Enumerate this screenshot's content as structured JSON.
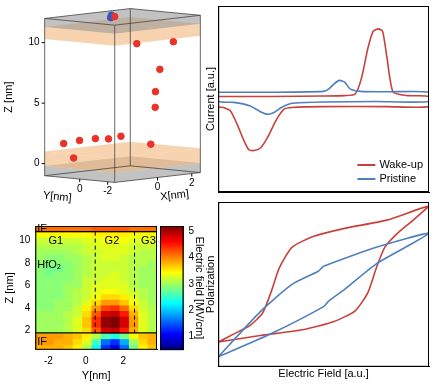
{
  "chart_data": [
    {
      "type": "scatter3d",
      "x_label": "X[nm]",
      "y_label": "Y[nm]",
      "z_label": "Z [nm]",
      "xlim": [
        -2.5,
        2.5
      ],
      "ylim": [
        -2.5,
        2.5
      ],
      "zlim": [
        -1,
        12
      ],
      "xticks": [
        0,
        2
      ],
      "yticks": [
        -2,
        0
      ],
      "zticks": [
        0,
        5,
        10
      ],
      "layers": [
        {
          "z": [
            -1,
            -0.2
          ],
          "color": "#9a9a9a"
        },
        {
          "z": [
            -0.2,
            1
          ],
          "color": "#f4b67a"
        },
        {
          "z": [
            10.3,
            11.3
          ],
          "color": "#f4b67a"
        },
        {
          "z": [
            11.3,
            12
          ],
          "color": "#9a9a9a"
        }
      ],
      "series": [
        {
          "color": "#e8322a",
          "x": [
            -1.8,
            -1.2,
            -0.6,
            0.0,
            0.4,
            -2.2,
            1.0,
            0.6,
            1.6,
            1.2,
            1.0,
            1.5,
            0.2
          ],
          "y": [
            2.0,
            1.6,
            1.2,
            1.0,
            0.6,
            0.8,
            -0.8,
            -1.6,
            -0.4,
            -1.2,
            0.2,
            -1.8,
            0.8
          ],
          "z": [
            1.6,
            1.8,
            1.9,
            1.8,
            2.0,
            0.6,
            1.4,
            4.6,
            5.6,
            7.6,
            9.6,
            9.9,
            11.9
          ]
        },
        {
          "color": "#3355cc",
          "x": [
            -0.2,
            0.5
          ],
          "y": [
            0.6,
            1.4
          ],
          "z": [
            11.9,
            11.9
          ]
        }
      ]
    },
    {
      "type": "heatmap",
      "x_label": "Y[nm]",
      "y_label": "Z [nm]",
      "xlim": [
        -2.7,
        3.8
      ],
      "ylim": [
        0.3,
        11.3
      ],
      "xticks": [
        -2,
        0,
        2
      ],
      "yticks": [
        2,
        4,
        6,
        8,
        10
      ],
      "x_edges": [
        -2.7,
        -2.2,
        -1.7,
        -1.2,
        -0.7,
        -0.2,
        0.3,
        0.8,
        1.3,
        1.8,
        2.3,
        2.8,
        3.3,
        3.8
      ],
      "y_edges": [
        0.3,
        0.8,
        1.3,
        1.8,
        2.3,
        2.8,
        3.3,
        3.8,
        4.3,
        4.8,
        5.3,
        5.8,
        6.3,
        6.8,
        7.3,
        7.8,
        8.3,
        8.8,
        9.3,
        9.8,
        10.3,
        10.8,
        11.3
      ],
      "cells": [
        [
          3.8,
          3.8,
          3.8,
          3.7,
          3.5,
          3.1,
          2.3,
          1.3,
          1.0,
          1.6,
          2.8,
          3.5,
          3.7
        ],
        [
          3.9,
          3.9,
          3.8,
          3.8,
          3.6,
          3.3,
          2.6,
          1.6,
          1.3,
          1.9,
          3.0,
          3.6,
          3.8
        ],
        [
          3.9,
          3.9,
          3.9,
          3.8,
          3.7,
          3.5,
          3.1,
          2.6,
          2.4,
          2.8,
          3.4,
          3.7,
          3.8
        ],
        [
          3.0,
          3.0,
          3.0,
          3.1,
          3.3,
          3.6,
          4.2,
          4.8,
          4.9,
          4.5,
          3.8,
          3.3,
          3.1
        ],
        [
          3.0,
          3.0,
          3.0,
          3.1,
          3.3,
          3.7,
          4.4,
          5.1,
          5.2,
          4.8,
          3.9,
          3.3,
          3.1
        ],
        [
          3.0,
          3.0,
          3.0,
          3.1,
          3.3,
          3.7,
          4.4,
          5.1,
          5.2,
          4.8,
          3.9,
          3.3,
          3.1
        ],
        [
          3.0,
          3.0,
          3.0,
          3.1,
          3.2,
          3.6,
          4.2,
          4.8,
          4.9,
          4.5,
          3.8,
          3.3,
          3.1
        ],
        [
          2.9,
          2.9,
          3.0,
          3.0,
          3.2,
          3.5,
          3.9,
          4.3,
          4.4,
          4.1,
          3.6,
          3.2,
          3.1
        ],
        [
          2.9,
          2.9,
          3.0,
          3.0,
          3.1,
          3.3,
          3.6,
          3.9,
          3.9,
          3.7,
          3.4,
          3.2,
          3.0
        ],
        [
          2.9,
          2.9,
          2.9,
          3.0,
          3.1,
          3.2,
          3.4,
          3.6,
          3.6,
          3.5,
          3.3,
          3.1,
          3.0
        ],
        [
          2.9,
          2.9,
          2.9,
          3.0,
          3.1,
          3.2,
          3.3,
          3.4,
          3.4,
          3.3,
          3.2,
          3.1,
          3.0
        ],
        [
          2.9,
          2.9,
          2.9,
          3.0,
          3.0,
          3.2,
          3.3,
          3.3,
          3.3,
          3.3,
          3.1,
          3.0,
          3.0
        ],
        [
          2.9,
          2.9,
          2.9,
          2.9,
          3.0,
          3.2,
          3.2,
          3.3,
          3.3,
          3.2,
          3.1,
          3.0,
          3.0
        ],
        [
          2.9,
          2.8,
          2.9,
          2.9,
          3.0,
          3.1,
          3.2,
          3.2,
          3.3,
          3.2,
          3.1,
          3.0,
          3.0
        ],
        [
          2.9,
          2.8,
          2.8,
          2.9,
          3.0,
          3.1,
          3.2,
          3.2,
          3.2,
          3.2,
          3.1,
          3.0,
          3.0
        ],
        [
          2.9,
          2.9,
          2.9,
          2.9,
          3.0,
          3.1,
          3.2,
          3.2,
          3.2,
          3.2,
          3.1,
          3.1,
          3.0
        ],
        [
          3.0,
          2.9,
          2.9,
          3.0,
          3.0,
          3.1,
          3.2,
          3.3,
          3.3,
          3.2,
          3.1,
          3.1,
          3.1
        ],
        [
          3.0,
          3.0,
          3.0,
          3.0,
          3.1,
          3.2,
          3.2,
          3.3,
          3.3,
          3.3,
          3.2,
          3.1,
          3.1
        ],
        [
          3.1,
          3.1,
          3.1,
          3.1,
          3.1,
          3.2,
          3.3,
          3.3,
          3.3,
          3.3,
          3.2,
          3.2,
          3.2
        ],
        [
          3.2,
          3.2,
          3.2,
          3.2,
          3.2,
          3.3,
          3.3,
          3.4,
          3.4,
          3.4,
          3.3,
          3.3,
          3.3
        ],
        [
          3.4,
          3.4,
          3.4,
          3.4,
          3.4,
          3.4,
          3.5,
          3.5,
          3.5,
          3.5,
          3.4,
          3.4,
          3.4
        ],
        [
          4.1,
          4.1,
          4.1,
          4.1,
          4.1,
          4.1,
          4.2,
          4.2,
          4.2,
          4.2,
          4.1,
          4.1,
          4.1
        ]
      ],
      "colorbar": {
        "label": "Electric field [MV/cm]",
        "lim": [
          0.5,
          5.2
        ],
        "ticks": [
          1,
          2,
          3,
          4,
          5
        ]
      },
      "lines": {
        "x": [
          0.5,
          2.6
        ],
        "y": [
          1.8,
          10.8
        ]
      },
      "annotations": [
        {
          "text": "IF",
          "x": -2.6,
          "y": 11.05
        },
        {
          "text": "IF",
          "x": -2.6,
          "y": 1.0
        },
        {
          "text": "HfO₂",
          "x": -2.6,
          "y": 7.8
        },
        {
          "text": "G1",
          "x": -2.0,
          "y": 10.0
        },
        {
          "text": "G2",
          "x": 1.0,
          "y": 10.0
        },
        {
          "text": "G3",
          "x": 2.95,
          "y": 10.0
        }
      ]
    },
    {
      "type": "line",
      "y_label": "Current [a.u.]",
      "xlim": [
        -1,
        1
      ],
      "ylim": [
        -1.1,
        1.1
      ],
      "tick_labels": false,
      "grid": false,
      "legend": "lower right",
      "series": [
        {
          "name": "Wake-up",
          "color": "#c8413a",
          "x": [
            -1,
            -0.5,
            0,
            0.2,
            0.3,
            0.36,
            0.42,
            0.47,
            0.52,
            0.56,
            0.6,
            0.66,
            0.8,
            1,
            1,
            0.6,
            0,
            -0.3,
            -0.375,
            -0.45,
            -0.53,
            -0.6,
            -0.66,
            -0.71,
            -0.76,
            -0.82,
            -0.885,
            -0.95,
            -1,
            -1
          ],
          "y": [
            0.03,
            0.03,
            0.035,
            0.04,
            0.06,
            0.25,
            0.6,
            0.8,
            0.83,
            0.8,
            0.5,
            0.08,
            0.04,
            0.03,
            -0.09,
            -0.09,
            -0.09,
            -0.1,
            -0.12,
            -0.25,
            -0.45,
            -0.58,
            -0.61,
            -0.6,
            -0.48,
            -0.3,
            -0.14,
            -0.1,
            -0.09,
            0.03
          ]
        },
        {
          "name": "Pristine",
          "color": "#4f7fbf",
          "x": [
            -1,
            -0.5,
            0,
            0.05,
            0.1,
            0.15,
            0.2,
            0.25,
            0.35,
            0.6,
            1,
            1,
            0.5,
            0,
            -0.3,
            -0.4,
            -0.47,
            -0.53,
            -0.6,
            -0.7,
            -0.85,
            -1,
            -1
          ],
          "y": [
            0.08,
            0.08,
            0.09,
            0.12,
            0.18,
            0.22,
            0.2,
            0.12,
            0.09,
            0.085,
            0.08,
            -0.03,
            -0.03,
            -0.035,
            -0.05,
            -0.1,
            -0.16,
            -0.18,
            -0.15,
            -0.08,
            -0.04,
            -0.03,
            0.08
          ]
        }
      ]
    },
    {
      "type": "line",
      "x_label": "Electric Field [a.u.]",
      "y_label": "Polarization",
      "xlim": [
        -1,
        1
      ],
      "ylim": [
        -1,
        1
      ],
      "tick_labels": false,
      "grid": false,
      "series": [
        {
          "name": "Wake-up",
          "color": "#c8413a",
          "x": [
            -1,
            -0.6,
            -0.2,
            0.1,
            0.3,
            0.42,
            0.5,
            0.58,
            0.7,
            0.85,
            1,
            0.6,
            0.2,
            -0.1,
            -0.3,
            -0.42,
            -0.5,
            -0.58,
            -0.7,
            -0.85,
            -1
          ],
          "y": [
            -0.7,
            -0.62,
            -0.55,
            -0.45,
            -0.32,
            -0.1,
            0.2,
            0.45,
            0.62,
            0.78,
            0.95,
            0.78,
            0.68,
            0.58,
            0.45,
            0.2,
            -0.1,
            -0.35,
            -0.5,
            -0.6,
            -0.7
          ]
        },
        {
          "name": "Pristine",
          "color": "#4f7fbf",
          "x": [
            -1,
            -0.5,
            0,
            0.05,
            0.2,
            0.5,
            1,
            0.5,
            0,
            -0.05,
            -0.3,
            -0.6,
            -1
          ],
          "y": [
            -0.88,
            -0.6,
            -0.27,
            -0.2,
            -0.06,
            0.25,
            0.62,
            0.45,
            0.22,
            0.16,
            0.0,
            -0.33,
            -0.88
          ]
        }
      ]
    }
  ]
}
